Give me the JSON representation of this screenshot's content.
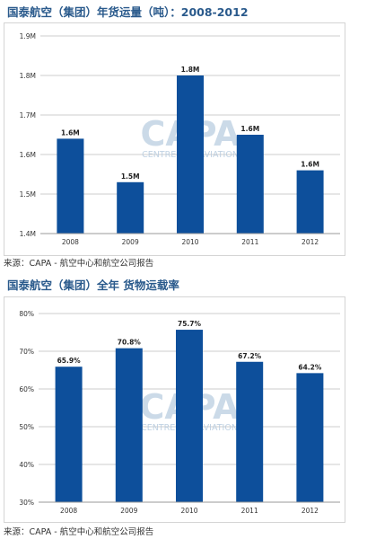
{
  "colors": {
    "bar": "#0d4f9b",
    "grid": "#cccccc",
    "title": "#2a5a8c",
    "watermark": "#b9cde0"
  },
  "watermark": {
    "main": "CAPA",
    "sub": "CENTRE FOR AVIATION"
  },
  "chart_data": [
    {
      "type": "bar",
      "title": "国泰航空（集团）年货运量（吨）：2008-2012",
      "categories": [
        "2008",
        "2009",
        "2010",
        "2011",
        "2012"
      ],
      "values": [
        1.64,
        1.53,
        1.8,
        1.65,
        1.56
      ],
      "data_labels": [
        "1.6M",
        "1.5M",
        "1.8M",
        "1.6M",
        "1.6M"
      ],
      "ylim": [
        1.4,
        1.9
      ],
      "yticks": [
        1.4,
        1.5,
        1.6,
        1.7,
        1.8,
        1.9
      ],
      "ytick_labels": [
        "1.4M",
        "1.5M",
        "1.6M",
        "1.7M",
        "1.8M",
        "1.9M"
      ],
      "grid": true,
      "source": "来源：CAPA - 航空中心和航空公司报告"
    },
    {
      "type": "bar",
      "title": "国泰航空（集团）全年  货物运载率",
      "categories": [
        "2008",
        "2009",
        "2010",
        "2011",
        "2012"
      ],
      "values": [
        65.9,
        70.8,
        75.7,
        67.2,
        64.2
      ],
      "data_labels": [
        "65.9%",
        "70.8%",
        "75.7%",
        "67.2%",
        "64.2%"
      ],
      "ylim": [
        30,
        80
      ],
      "yticks": [
        30,
        40,
        50,
        60,
        70,
        80
      ],
      "ytick_labels": [
        "30%",
        "40%",
        "50%",
        "60%",
        "70%",
        "80%"
      ],
      "grid": true,
      "source": "来源：CAPA - 航空中心和航空公司报告"
    }
  ]
}
